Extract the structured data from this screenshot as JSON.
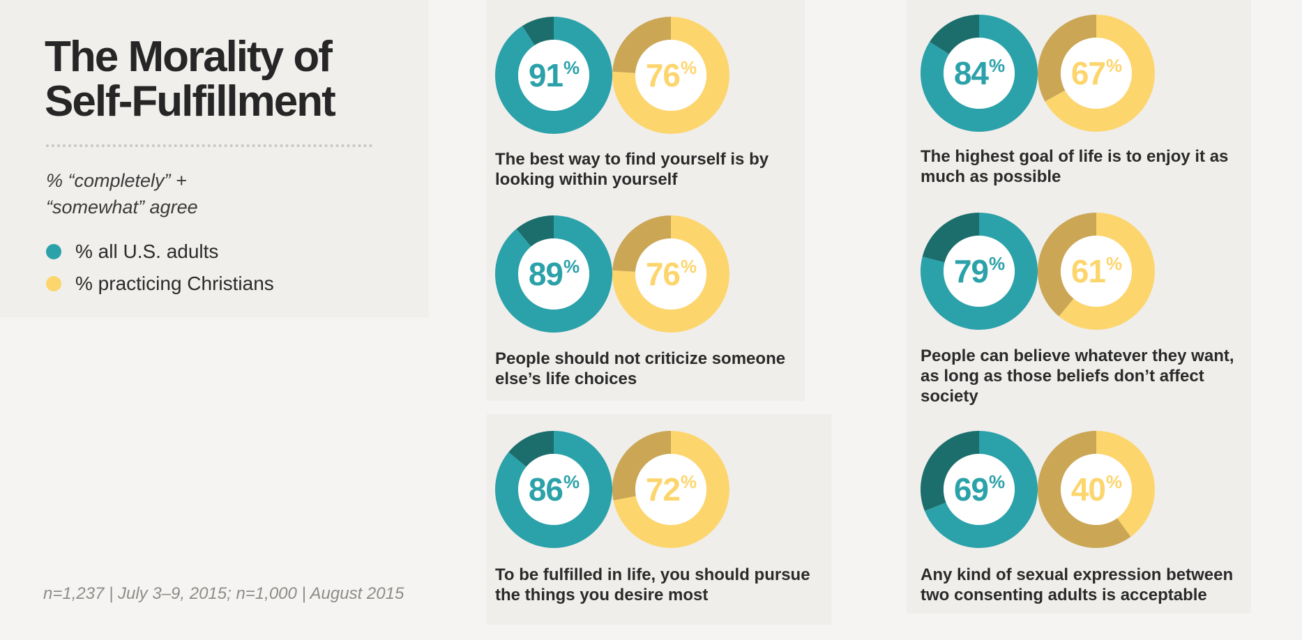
{
  "title_lines": [
    "The Morality of",
    "Self-Fulfillment"
  ],
  "subtitle": "% “completely” + “somewhat” agree",
  "legend": [
    {
      "label": "% all U.S. adults",
      "color": "#2ba1a9"
    },
    {
      "label": "% practicing Christians",
      "color": "#fdd56d"
    }
  ],
  "footnote": "n=1,237 | July 3–9, 2015; n=1,000 | August 2015",
  "colors": {
    "teal": "#2ba1a9",
    "teal_dark": "#1b6e6c",
    "yellow": "#fdd56d",
    "yellow_dark": "#caa655"
  },
  "chart_data": {
    "type": "pie",
    "style": "donut pairs",
    "series": [
      {
        "name": "% all U.S. adults",
        "values": [
          91,
          84,
          89,
          79,
          86,
          69
        ]
      },
      {
        "name": "% practicing Christians",
        "values": [
          76,
          67,
          76,
          61,
          72,
          40
        ]
      }
    ],
    "categories": [
      "The best way to find yourself is by looking within yourself",
      "The highest goal of life is to enjoy it as much as possible",
      "People should not criticize someone else’s life choices",
      "People can believe whatever they want, as long as those beliefs don’t affect society",
      "To be fulfilled in life, you should pursue the things you desire most",
      "Any kind of sexual expression between two consenting adults is acceptable"
    ],
    "unit": "%"
  }
}
